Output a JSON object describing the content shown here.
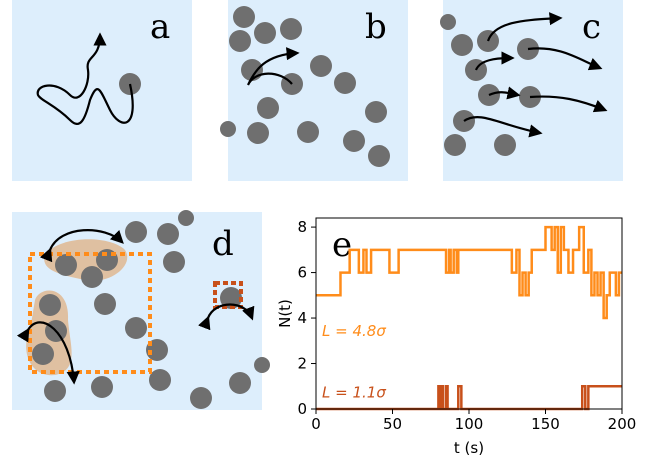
{
  "panel_labels": [
    "a",
    "b",
    "c",
    "d",
    "e"
  ],
  "chart_data": {
    "type": "step",
    "xlabel": "t (s)",
    "ylabel": "N(t)",
    "xlim": [
      0,
      200
    ],
    "xticks": [
      0,
      50,
      100,
      150,
      200
    ],
    "ylim": [
      0,
      8.4
    ],
    "yticks": [
      0,
      2,
      4,
      6,
      8
    ],
    "series": [
      {
        "name": "L = 4.8σ",
        "color": "#ff8c1a",
        "x": [
          0,
          16,
          22,
          28,
          31,
          33,
          36,
          48,
          54,
          85,
          87,
          88,
          90,
          92,
          93,
          128,
          131,
          133,
          135,
          137,
          139,
          141,
          150,
          154,
          156,
          158,
          160,
          162,
          165,
          168,
          172,
          175,
          178,
          180,
          182,
          184,
          186,
          188,
          190,
          192,
          196,
          198,
          200
        ],
        "values": [
          5,
          6,
          7,
          6,
          7,
          6,
          7,
          6,
          7,
          6,
          7,
          6,
          7,
          6,
          7,
          6,
          7,
          5,
          6,
          5,
          6,
          7,
          8,
          7,
          8,
          6,
          8,
          7,
          6,
          7,
          8,
          6,
          7,
          5,
          6,
          5,
          6,
          4,
          5,
          6,
          5,
          6,
          6
        ]
      },
      {
        "name": "L = 1.1σ",
        "color": "#c8501a",
        "x": [
          0,
          80,
          81,
          82,
          83,
          85,
          86,
          93,
          95,
          174,
          176,
          178,
          200
        ],
        "values": [
          0,
          1,
          0,
          1,
          0,
          1,
          0,
          1,
          0,
          1,
          0,
          1,
          1
        ]
      }
    ]
  }
}
